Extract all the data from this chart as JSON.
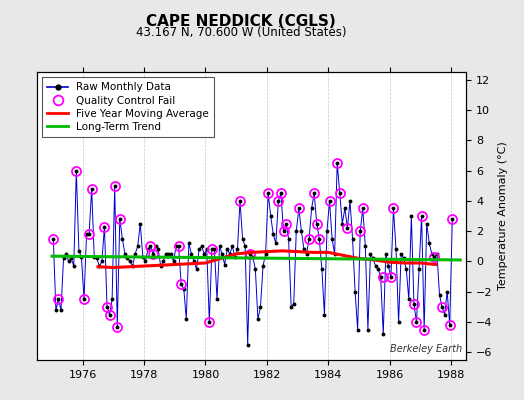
{
  "title": "CAPE NEDDICK (CGLS)",
  "subtitle": "43.167 N, 70.600 W (United States)",
  "ylabel": "Temperature Anomaly (°C)",
  "watermark": "Berkeley Earth",
  "xlim": [
    1974.5,
    1988.5
  ],
  "ylim": [
    -6.5,
    12.5
  ],
  "yticks": [
    -6,
    -4,
    -2,
    0,
    2,
    4,
    6,
    8,
    10,
    12
  ],
  "xticks": [
    1976,
    1978,
    1980,
    1982,
    1984,
    1986,
    1988
  ],
  "background_color": "#e8e8e8",
  "plot_bg_color": "#ffffff",
  "raw_color": "#0000cc",
  "qc_color": "#ff00ff",
  "mavg_color": "#ff0000",
  "trend_color": "#00bb00",
  "raw_data_x": [
    1975.042,
    1975.125,
    1975.208,
    1975.292,
    1975.375,
    1975.458,
    1975.542,
    1975.625,
    1975.708,
    1975.792,
    1975.875,
    1975.958,
    1976.042,
    1976.125,
    1976.208,
    1976.292,
    1976.375,
    1976.458,
    1976.542,
    1976.625,
    1976.708,
    1976.792,
    1976.875,
    1976.958,
    1977.042,
    1977.125,
    1977.208,
    1977.292,
    1977.375,
    1977.458,
    1977.542,
    1977.625,
    1977.708,
    1977.792,
    1977.875,
    1977.958,
    1978.042,
    1978.125,
    1978.208,
    1978.292,
    1978.375,
    1978.458,
    1978.542,
    1978.625,
    1978.708,
    1978.792,
    1978.875,
    1978.958,
    1979.042,
    1979.125,
    1979.208,
    1979.292,
    1979.375,
    1979.458,
    1979.542,
    1979.625,
    1979.708,
    1979.792,
    1979.875,
    1979.958,
    1980.042,
    1980.125,
    1980.208,
    1980.292,
    1980.375,
    1980.458,
    1980.542,
    1980.625,
    1980.708,
    1980.792,
    1980.875,
    1980.958,
    1981.042,
    1981.125,
    1981.208,
    1981.292,
    1981.375,
    1981.458,
    1981.542,
    1981.625,
    1981.708,
    1981.792,
    1981.875,
    1981.958,
    1982.042,
    1982.125,
    1982.208,
    1982.292,
    1982.375,
    1982.458,
    1982.542,
    1982.625,
    1982.708,
    1982.792,
    1982.875,
    1982.958,
    1983.042,
    1983.125,
    1983.208,
    1983.292,
    1983.375,
    1983.458,
    1983.542,
    1983.625,
    1983.708,
    1983.792,
    1983.875,
    1983.958,
    1984.042,
    1984.125,
    1984.208,
    1984.292,
    1984.375,
    1984.458,
    1984.542,
    1984.625,
    1984.708,
    1984.792,
    1984.875,
    1984.958,
    1985.042,
    1985.125,
    1985.208,
    1985.292,
    1985.375,
    1985.458,
    1985.542,
    1985.625,
    1985.708,
    1985.792,
    1985.875,
    1985.958,
    1986.042,
    1986.125,
    1986.208,
    1986.292,
    1986.375,
    1986.458,
    1986.542,
    1986.625,
    1986.708,
    1986.792,
    1986.875,
    1986.958,
    1987.042,
    1987.125,
    1987.208,
    1987.292,
    1987.375,
    1987.458,
    1987.542,
    1987.625,
    1987.708,
    1987.792,
    1987.875,
    1987.958,
    1988.042
  ],
  "raw_data_y": [
    1.5,
    -3.2,
    -2.5,
    -3.2,
    0.2,
    0.5,
    0.0,
    0.2,
    -0.3,
    6.0,
    0.7,
    0.3,
    -2.5,
    1.8,
    1.8,
    4.8,
    0.3,
    0.2,
    -0.3,
    0.0,
    2.3,
    -3.0,
    -3.5,
    -2.5,
    5.0,
    -4.3,
    2.8,
    1.5,
    0.5,
    0.2,
    0.0,
    -0.3,
    0.5,
    1.0,
    2.5,
    0.3,
    0.0,
    0.8,
    1.0,
    0.5,
    1.0,
    0.8,
    -0.3,
    0.0,
    0.5,
    0.5,
    0.5,
    0.0,
    1.0,
    1.0,
    -1.5,
    -1.8,
    -3.8,
    1.2,
    0.5,
    0.0,
    -0.5,
    0.8,
    1.0,
    0.5,
    0.8,
    -4.0,
    0.8,
    0.8,
    -2.5,
    1.0,
    0.5,
    -0.2,
    0.8,
    0.5,
    1.0,
    0.3,
    0.8,
    4.0,
    1.5,
    1.0,
    -5.5,
    0.5,
    0.3,
    -0.5,
    -3.8,
    -3.0,
    -0.3,
    0.5,
    4.5,
    3.0,
    1.8,
    1.2,
    4.0,
    4.5,
    2.0,
    2.5,
    1.5,
    -3.0,
    -2.8,
    2.0,
    3.5,
    2.0,
    0.8,
    0.5,
    1.5,
    3.5,
    4.5,
    2.5,
    1.5,
    -0.5,
    -3.5,
    2.0,
    4.0,
    1.5,
    0.5,
    6.5,
    4.5,
    2.5,
    3.5,
    2.2,
    4.0,
    1.5,
    -2.0,
    -4.5,
    2.0,
    3.5,
    1.0,
    -4.5,
    0.5,
    0.2,
    -0.3,
    -0.5,
    -1.0,
    -4.8,
    0.5,
    -0.3,
    -1.0,
    3.5,
    0.8,
    -4.0,
    0.5,
    0.2,
    -0.5,
    -2.5,
    3.0,
    -2.8,
    -4.0,
    -0.5,
    3.0,
    -4.5,
    2.5,
    1.2,
    0.5,
    0.3,
    0.5,
    -2.2,
    -3.0,
    -3.5,
    -2.0,
    -4.2,
    2.8
  ],
  "qc_fail_x": [
    1975.042,
    1975.208,
    1975.792,
    1976.042,
    1976.208,
    1976.292,
    1976.708,
    1976.792,
    1976.875,
    1977.042,
    1977.125,
    1977.208,
    1978.208,
    1978.292,
    1979.125,
    1979.208,
    1980.125,
    1980.208,
    1981.125,
    1981.458,
    1982.042,
    1982.375,
    1982.458,
    1982.542,
    1982.625,
    1983.042,
    1983.375,
    1983.542,
    1983.625,
    1983.708,
    1984.042,
    1984.292,
    1984.375,
    1984.625,
    1985.042,
    1985.125,
    1985.792,
    1986.042,
    1986.125,
    1986.792,
    1986.875,
    1987.042,
    1987.125,
    1987.458,
    1987.708,
    1987.958,
    1988.042
  ],
  "qc_fail_y": [
    1.5,
    -2.5,
    6.0,
    -2.5,
    1.8,
    4.8,
    2.3,
    -3.0,
    -3.5,
    5.0,
    -4.3,
    2.8,
    1.0,
    0.5,
    1.0,
    -1.5,
    -4.0,
    0.8,
    4.0,
    0.5,
    4.5,
    4.0,
    4.5,
    2.0,
    2.5,
    3.5,
    1.5,
    4.5,
    2.5,
    1.5,
    4.0,
    6.5,
    4.5,
    2.2,
    2.0,
    3.5,
    -1.0,
    -1.0,
    3.5,
    -2.8,
    -4.0,
    3.0,
    -4.5,
    0.3,
    -3.0,
    -4.2,
    2.8
  ],
  "mavg_x": [
    1976.5,
    1977.0,
    1977.5,
    1978.0,
    1978.5,
    1979.0,
    1979.5,
    1980.0,
    1980.5,
    1981.0,
    1981.5,
    1982.0,
    1982.5,
    1983.0,
    1983.5,
    1984.0,
    1984.5,
    1985.0,
    1985.5,
    1986.0,
    1986.5,
    1987.0,
    1987.5
  ],
  "mavg_y": [
    -0.35,
    -0.4,
    -0.35,
    -0.3,
    -0.25,
    -0.2,
    -0.15,
    -0.1,
    0.2,
    0.5,
    0.6,
    0.65,
    0.7,
    0.65,
    0.6,
    0.6,
    0.4,
    0.2,
    0.1,
    -0.05,
    -0.1,
    -0.1,
    -0.2
  ],
  "trend_x": [
    1975.0,
    1988.3
  ],
  "trend_y": [
    0.35,
    0.1
  ]
}
